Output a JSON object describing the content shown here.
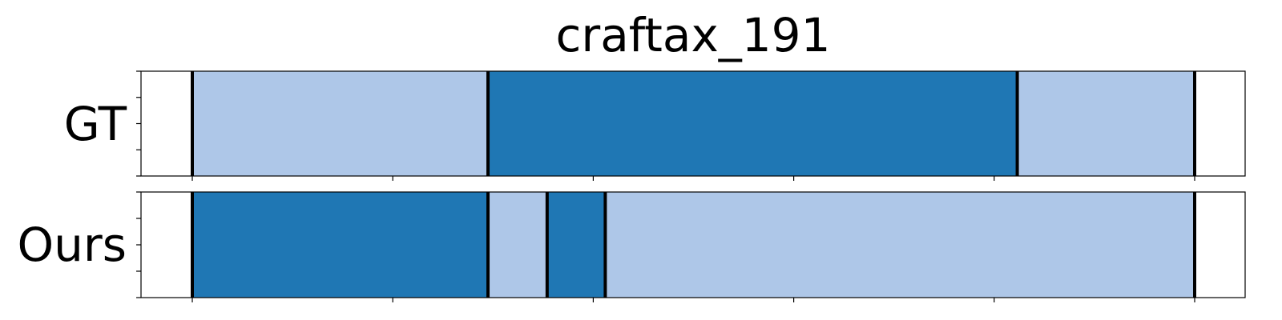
{
  "colors": {
    "light": "#aec7e8",
    "dark": "#1f77b4",
    "boundary": "#000000",
    "frame": "#000000",
    "background": "#ffffff"
  },
  "chart_data": {
    "type": "segmentation_timeline",
    "title": "craftax_191",
    "x_range": [
      0,
      1
    ],
    "x_ticks": [
      0.0,
      0.2,
      0.4,
      0.6,
      0.8,
      1.0
    ],
    "tick_labels_shown": false,
    "grid": false,
    "legend": "none",
    "rows": [
      {
        "label": "GT",
        "segments": [
          {
            "start": 0.0,
            "end": 0.295,
            "category": "light"
          },
          {
            "start": 0.295,
            "end": 0.823,
            "category": "dark"
          },
          {
            "start": 0.823,
            "end": 1.0,
            "category": "light"
          }
        ]
      },
      {
        "label": "Ours",
        "segments": [
          {
            "start": 0.0,
            "end": 0.295,
            "category": "dark"
          },
          {
            "start": 0.295,
            "end": 0.354,
            "category": "light"
          },
          {
            "start": 0.354,
            "end": 0.412,
            "category": "dark"
          },
          {
            "start": 0.412,
            "end": 1.0,
            "category": "light"
          }
        ]
      }
    ]
  }
}
